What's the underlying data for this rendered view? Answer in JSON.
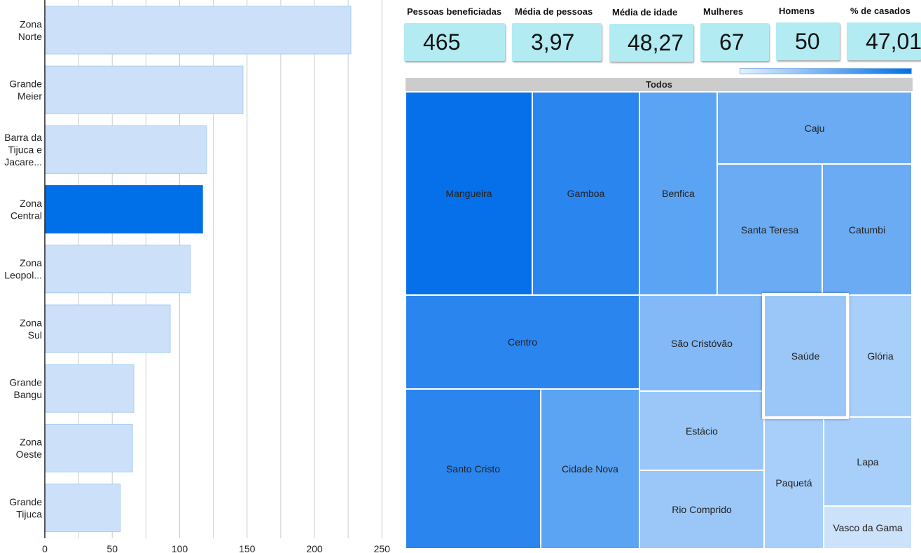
{
  "chart_data": [
    {
      "type": "bar",
      "orientation": "horizontal",
      "categories": [
        "Zona Norte",
        "Grande Meier",
        "Barra da Tijuca e Jacare...",
        "Zona Central",
        "Zona Leopol...",
        "Zona Sul",
        "Grande Bangu",
        "Zona Oeste",
        "Grande Tijuca"
      ],
      "category_lines": [
        [
          "Zona",
          "Norte"
        ],
        [
          "Grande",
          "Meier"
        ],
        [
          "Barra da",
          "Tijuca e",
          "Jacare..."
        ],
        [
          "Zona",
          "Central"
        ],
        [
          "Zona",
          "Leopol..."
        ],
        [
          "Zona",
          "Sul"
        ],
        [
          "Grande",
          "Bangu"
        ],
        [
          "Zona",
          "Oeste"
        ],
        [
          "Grande",
          "Tijuca"
        ]
      ],
      "values": [
        227,
        147,
        120,
        117,
        108,
        93,
        66,
        65,
        56
      ],
      "highlighted": "Zona Central",
      "xlim": [
        0,
        250
      ],
      "xticks": [
        0,
        50,
        100,
        150,
        200,
        250
      ],
      "xgrid_step": 25,
      "grid": true,
      "colors": {
        "bar": "#cce1f9",
        "bar_border": "#a9cdf3",
        "highlight": "#0070e8",
        "grid": "#c8cdd3",
        "axis": "#222222"
      }
    },
    {
      "type": "treemap",
      "root_label": "Todos",
      "cells": [
        {
          "label": "Mangueira",
          "color": "#0570ea"
        },
        {
          "label": "Gamboa",
          "color": "#2a85ee"
        },
        {
          "label": "Benfica",
          "color": "#5ba3f3"
        },
        {
          "label": "Caju",
          "color": "#6babf4"
        },
        {
          "label": "Santa Teresa",
          "color": "#6babf4"
        },
        {
          "label": "Catumbi",
          "color": "#6babf4"
        },
        {
          "label": "Centro",
          "color": "#2a85ee"
        },
        {
          "label": "São Cristóvão",
          "color": "#82b9f6"
        },
        {
          "label": "Saúde",
          "color": "#9bc7f8",
          "selected": true
        },
        {
          "label": "Glória",
          "color": "#a8cff9"
        },
        {
          "label": "Santo Cristo",
          "color": "#2a85ee"
        },
        {
          "label": "Cidade Nova",
          "color": "#5ba3f3"
        },
        {
          "label": "Estácio",
          "color": "#9bc7f8"
        },
        {
          "label": "Paquetá",
          "color": "#a8cff9"
        },
        {
          "label": "Lapa",
          "color": "#a8cff9"
        },
        {
          "label": "Rio Comprido",
          "color": "#9bc7f8"
        },
        {
          "label": "Vasco da Gama",
          "color": "#cce2fb"
        }
      ],
      "legend_gradient": [
        "#e6f0fc",
        "#0070e8"
      ]
    }
  ],
  "kpis": [
    {
      "title": "Pessoas beneficiadas",
      "value": "465"
    },
    {
      "title": "Média de pessoas",
      "value": "3,97"
    },
    {
      "title": "Média de idade",
      "value": "48,27"
    },
    {
      "title": "Mulheres",
      "value": "67"
    },
    {
      "title": "Homens",
      "value": "50"
    },
    {
      "title": "% de casados",
      "value": "47,01"
    }
  ]
}
